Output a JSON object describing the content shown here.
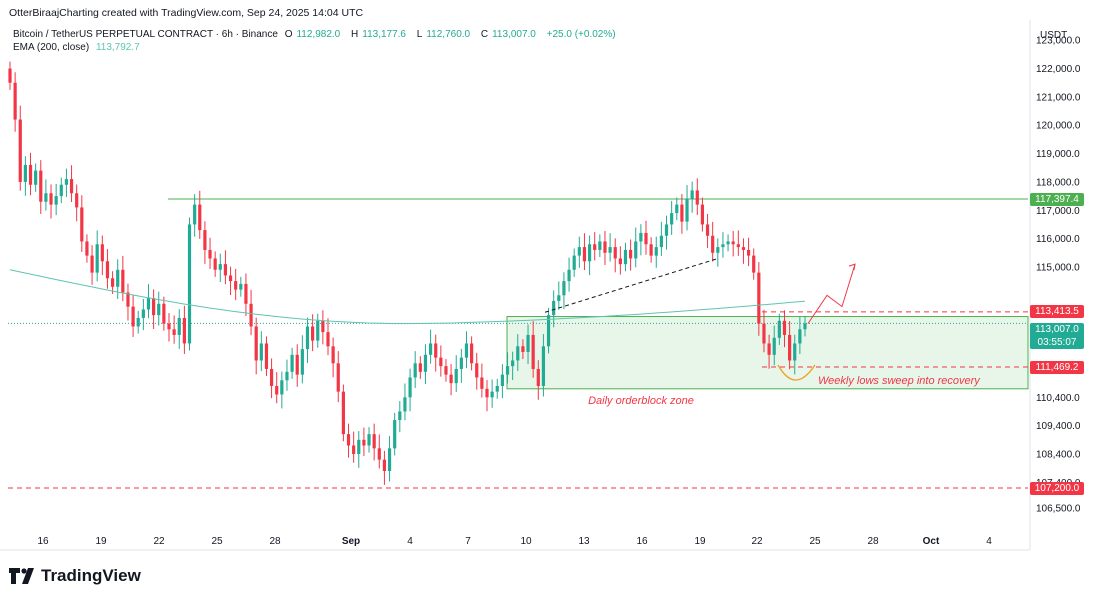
{
  "header": {
    "credit": "OtterBiraajCharting created with TradingView.com, Sep 24, 2025 14:04 UTC"
  },
  "legend": {
    "symbol": "Bitcoin / TetherUS PERPETUAL CONTRACT · 6h · Binance",
    "open_label": "O",
    "open": "112,982.0",
    "high_label": "H",
    "high": "113,177.6",
    "low_label": "L",
    "low": "112,760.0",
    "close_label": "C",
    "close": "113,007.0",
    "change": "+25.0 (+0.02%)",
    "ema_label": "EMA (200, close)",
    "ema_value": "113,792.7"
  },
  "axis_currency": "USDT",
  "colors": {
    "up": "#22ab94",
    "down": "#f23645",
    "ema": "#5fc4b0",
    "zone": "#4caf50",
    "zone_fill": "#e8f5e9",
    "annotation": "#f23645",
    "sweep": "#f0a020"
  },
  "brand": {
    "name": "TradingView"
  },
  "chart_data": {
    "type": "candlestick",
    "title": "Bitcoin / TetherUS PERPETUAL CONTRACT · 6h · Binance",
    "ylim": [
      106000,
      123500
    ],
    "y_ticks": [
      "106,500.0",
      "107,400.0",
      "108,400.0",
      "109,400.0",
      "110,400.0",
      "115,000.0",
      "116,000.0",
      "117,000.0",
      "118,000.0",
      "119,000.0",
      "120,000.0",
      "121,000.0",
      "122,000.0",
      "123,000.0"
    ],
    "x_ticks": [
      "16",
      "19",
      "22",
      "25",
      "28",
      "Sep",
      "4",
      "7",
      "10",
      "13",
      "16",
      "19",
      "22",
      "25",
      "28",
      "Oct",
      "4"
    ],
    "x_tick_bold": [
      "Sep",
      "Oct"
    ],
    "series_closes": [
      121500,
      120200,
      118000,
      118600,
      117900,
      118400,
      117300,
      117600,
      117200,
      117500,
      117900,
      118100,
      117600,
      117100,
      115900,
      115400,
      114800,
      115800,
      115200,
      114600,
      114300,
      114900,
      114100,
      113600,
      112900,
      113200,
      113500,
      113900,
      113300,
      113700,
      113000,
      112800,
      112600,
      113200,
      112300,
      116500,
      117200,
      116300,
      115600,
      115300,
      114900,
      115100,
      114700,
      114500,
      114200,
      114400,
      113700,
      112900,
      111700,
      112300,
      111400,
      110800,
      110500,
      111000,
      111300,
      111900,
      111200,
      112100,
      112900,
      112400,
      113100,
      112700,
      112200,
      111600,
      110600,
      109100,
      108700,
      108400,
      108900,
      108700,
      109100,
      108600,
      108200,
      107800,
      108600,
      109600,
      109900,
      110400,
      111100,
      111600,
      111300,
      111900,
      112300,
      111800,
      111500,
      111200,
      110900,
      111400,
      111800,
      112300,
      111600,
      111100,
      110700,
      110400,
      110600,
      110800,
      111200,
      111500,
      111700,
      112200,
      112000,
      112600,
      111400,
      110800,
      112200,
      113300,
      113800,
      114000,
      114500,
      114900,
      115400,
      115700,
      115200,
      115800,
      115600,
      115900,
      115500,
      115700,
      115300,
      115100,
      115600,
      115300,
      115900,
      116200,
      115800,
      115400,
      115700,
      116100,
      116500,
      116900,
      117200,
      116600,
      117400,
      117700,
      117200,
      116500,
      116100,
      115500,
      115700,
      115800,
      115900,
      115800,
      115700,
      115600,
      115400,
      114800,
      113000,
      112300,
      111900,
      112500,
      113100,
      112600,
      111700,
      112300,
      112800,
      113007
    ],
    "ema_200": {
      "name": "EMA (200, close)",
      "start": 114900,
      "mid": 113000,
      "end": 113792.7
    },
    "horizontal_levels": [
      {
        "label": "117,397.4",
        "price": 117397.4,
        "style": "solid",
        "color": "#4caf50"
      },
      {
        "label": "113,413.5",
        "price": 113413.5,
        "style": "dashed",
        "color": "#f23645"
      },
      {
        "label": "111,469.2",
        "price": 111469.2,
        "style": "dashed",
        "color": "#f23645"
      },
      {
        "label": "107,200.0",
        "price": 107200.0,
        "style": "dashed",
        "color": "#f23645"
      }
    ],
    "current_price": {
      "label": "113,007.0",
      "timer": "03:55:07",
      "price": 113007.0
    },
    "zone": {
      "label": "Daily orderblock zone",
      "top": 113250,
      "bottom": 110700
    },
    "annotation": "Weekly lows sweep into recovery",
    "trendline": {
      "from": 113400,
      "to": 115300,
      "style": "dashed"
    },
    "projection": [
      113000,
      114000,
      113600,
      115100
    ]
  }
}
